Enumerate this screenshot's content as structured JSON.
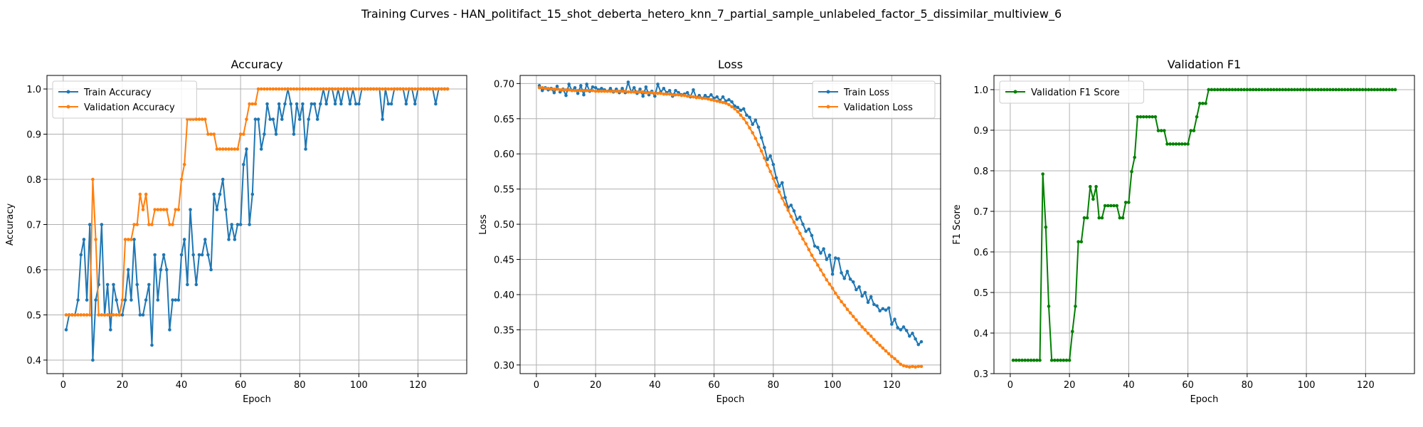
{
  "figure": {
    "suptitle": "Training Curves - HAN_politifact_15_shot_deberta_hetero_knn_7_partial_sample_unlabeled_factor_5_dissimilar_multiview_6"
  },
  "colors": {
    "blue": "#1f77b4",
    "orange": "#ff7f0e",
    "green": "#008000",
    "grid": "#b0b0b0",
    "axis": "#000000"
  },
  "chart_data": [
    {
      "type": "line",
      "title": "Accuracy",
      "xlabel": "Epoch",
      "ylabel": "Accuracy",
      "xlim": [
        -5.5,
        136.5
      ],
      "ylim": [
        0.37,
        1.03
      ],
      "xticks": [
        0,
        20,
        40,
        60,
        80,
        100,
        120
      ],
      "yticks": [
        0.4,
        0.5,
        0.6,
        0.7,
        0.8,
        0.9,
        1.0
      ],
      "grid": true,
      "legend_position": "upper left",
      "series": [
        {
          "name": "Train Accuracy",
          "color": "#1f77b4",
          "x_start": 1,
          "values": [
            0.467,
            0.5,
            0.5,
            0.5,
            0.533,
            0.633,
            0.667,
            0.533,
            0.7,
            0.4,
            0.533,
            0.567,
            0.7,
            0.5,
            0.567,
            0.467,
            0.567,
            0.533,
            0.5,
            0.5,
            0.533,
            0.6,
            0.533,
            0.667,
            0.567,
            0.5,
            0.5,
            0.533,
            0.567,
            0.433,
            0.633,
            0.533,
            0.6,
            0.633,
            0.6,
            0.467,
            0.533,
            0.533,
            0.533,
            0.633,
            0.667,
            0.567,
            0.733,
            0.633,
            0.567,
            0.633,
            0.633,
            0.667,
            0.633,
            0.6,
            0.767,
            0.733,
            0.767,
            0.8,
            0.733,
            0.667,
            0.7,
            0.667,
            0.7,
            0.7,
            0.833,
            0.867,
            0.7,
            0.767,
            0.933,
            0.933,
            0.867,
            0.9,
            0.967,
            0.933,
            0.933,
            0.9,
            0.967,
            0.933,
            0.967,
            1.0,
            0.967,
            0.9,
            0.967,
            0.933,
            0.967,
            0.867,
            0.933,
            0.967,
            0.967,
            0.933,
            0.967,
            1.0,
            0.967,
            1.0,
            1.0,
            0.967,
            1.0,
            0.967,
            1.0,
            1.0,
            0.967,
            1.0,
            0.967,
            0.967,
            1.0,
            1.0,
            1.0,
            1.0,
            1.0,
            1.0,
            1.0,
            0.933,
            1.0,
            0.967,
            0.967,
            1.0,
            1.0,
            1.0,
            1.0,
            0.967,
            1.0,
            1.0,
            0.967,
            1.0,
            1.0,
            1.0,
            1.0,
            1.0,
            1.0,
            0.967,
            1.0,
            1.0,
            1.0,
            1.0
          ]
        },
        {
          "name": "Validation Accuracy",
          "color": "#ff7f0e",
          "x_start": 1,
          "values": [
            0.5,
            0.5,
            0.5,
            0.5,
            0.5,
            0.5,
            0.5,
            0.5,
            0.5,
            0.8,
            0.667,
            0.5,
            0.5,
            0.5,
            0.5,
            0.5,
            0.5,
            0.5,
            0.5,
            0.533,
            0.667,
            0.667,
            0.667,
            0.7,
            0.7,
            0.767,
            0.733,
            0.767,
            0.7,
            0.7,
            0.733,
            0.733,
            0.733,
            0.733,
            0.733,
            0.7,
            0.7,
            0.733,
            0.733,
            0.8,
            0.833,
            0.933,
            0.933,
            0.933,
            0.933,
            0.933,
            0.933,
            0.933,
            0.9,
            0.9,
            0.9,
            0.867,
            0.867,
            0.867,
            0.867,
            0.867,
            0.867,
            0.867,
            0.867,
            0.9,
            0.9,
            0.933,
            0.967,
            0.967,
            0.967,
            1.0,
            1.0,
            1.0,
            1.0,
            1.0,
            1.0,
            1.0,
            1.0,
            1.0,
            1.0,
            1.0,
            1.0,
            1.0,
            1.0,
            1.0,
            1.0,
            1.0,
            1.0,
            1.0,
            1.0,
            1.0,
            1.0,
            1.0,
            1.0,
            1.0,
            1.0,
            1.0,
            1.0,
            1.0,
            1.0,
            1.0,
            1.0,
            1.0,
            1.0,
            1.0,
            1.0,
            1.0,
            1.0,
            1.0,
            1.0,
            1.0,
            1.0,
            1.0,
            1.0,
            1.0,
            1.0,
            1.0,
            1.0,
            1.0,
            1.0,
            1.0,
            1.0,
            1.0,
            1.0,
            1.0,
            1.0,
            1.0,
            1.0,
            1.0,
            1.0,
            1.0,
            1.0,
            1.0,
            1.0,
            1.0
          ]
        }
      ]
    },
    {
      "type": "line",
      "title": "Loss",
      "xlabel": "Epoch",
      "ylabel": "Loss",
      "xlim": [
        -5.5,
        136.5
      ],
      "ylim": [
        0.2877,
        0.7115
      ],
      "xticks": [
        0,
        20,
        40,
        60,
        80,
        100,
        120
      ],
      "yticks": [
        0.3,
        0.35,
        0.4,
        0.45,
        0.5,
        0.55,
        0.6,
        0.65,
        0.7
      ],
      "grid": true,
      "legend_position": "upper right",
      "series": [
        {
          "name": "Train Loss",
          "color": "#1f77b4",
          "x_start": 1,
          "values": [
            0.697,
            0.69,
            0.694,
            0.691,
            0.693,
            0.687,
            0.696,
            0.688,
            0.692,
            0.683,
            0.699,
            0.69,
            0.694,
            0.686,
            0.697,
            0.684,
            0.699,
            0.689,
            0.695,
            0.694,
            0.691,
            0.693,
            0.691,
            0.689,
            0.693,
            0.688,
            0.692,
            0.687,
            0.693,
            0.687,
            0.702,
            0.688,
            0.694,
            0.686,
            0.692,
            0.682,
            0.695,
            0.684,
            0.689,
            0.682,
            0.699,
            0.688,
            0.693,
            0.687,
            0.69,
            0.682,
            0.69,
            0.687,
            0.684,
            0.685,
            0.687,
            0.681,
            0.691,
            0.68,
            0.683,
            0.679,
            0.683,
            0.68,
            0.684,
            0.679,
            0.681,
            0.676,
            0.681,
            0.675,
            0.677,
            0.674,
            0.668,
            0.666,
            0.662,
            0.664,
            0.655,
            0.652,
            0.642,
            0.648,
            0.638,
            0.623,
            0.609,
            0.592,
            0.597,
            0.585,
            0.566,
            0.554,
            0.559,
            0.538,
            0.524,
            0.527,
            0.519,
            0.507,
            0.51,
            0.5,
            0.49,
            0.493,
            0.484,
            0.469,
            0.467,
            0.459,
            0.465,
            0.45,
            0.456,
            0.429,
            0.452,
            0.451,
            0.431,
            0.423,
            0.433,
            0.422,
            0.418,
            0.407,
            0.411,
            0.398,
            0.403,
            0.389,
            0.397,
            0.386,
            0.384,
            0.377,
            0.38,
            0.378,
            0.381,
            0.358,
            0.365,
            0.353,
            0.35,
            0.354,
            0.349,
            0.341,
            0.345,
            0.337,
            0.329,
            0.333
          ]
        },
        {
          "name": "Validation Loss",
          "color": "#ff7f0e",
          "x_start": 1,
          "values": [
            0.694,
            0.694,
            0.693,
            0.693,
            0.692,
            0.692,
            0.692,
            0.691,
            0.691,
            0.691,
            0.691,
            0.69,
            0.69,
            0.69,
            0.69,
            0.69,
            0.69,
            0.69,
            0.69,
            0.689,
            0.689,
            0.689,
            0.689,
            0.689,
            0.689,
            0.689,
            0.689,
            0.689,
            0.689,
            0.689,
            0.688,
            0.688,
            0.688,
            0.688,
            0.688,
            0.688,
            0.687,
            0.687,
            0.687,
            0.686,
            0.686,
            0.686,
            0.685,
            0.685,
            0.685,
            0.684,
            0.684,
            0.684,
            0.683,
            0.683,
            0.682,
            0.682,
            0.681,
            0.68,
            0.68,
            0.679,
            0.679,
            0.678,
            0.677,
            0.676,
            0.675,
            0.674,
            0.673,
            0.672,
            0.67,
            0.667,
            0.664,
            0.66,
            0.655,
            0.65,
            0.644,
            0.637,
            0.63,
            0.622,
            0.613,
            0.604,
            0.594,
            0.584,
            0.575,
            0.565,
            0.555,
            0.546,
            0.537,
            0.528,
            0.52,
            0.511,
            0.503,
            0.495,
            0.487,
            0.479,
            0.472,
            0.464,
            0.456,
            0.449,
            0.442,
            0.435,
            0.428,
            0.421,
            0.415,
            0.409,
            0.402,
            0.396,
            0.39,
            0.385,
            0.379,
            0.374,
            0.369,
            0.364,
            0.359,
            0.354,
            0.35,
            0.345,
            0.341,
            0.336,
            0.332,
            0.328,
            0.324,
            0.32,
            0.316,
            0.312,
            0.309,
            0.305,
            0.301,
            0.299,
            0.298,
            0.297,
            0.298,
            0.297,
            0.298,
            0.298
          ]
        }
      ]
    },
    {
      "type": "line",
      "title": "Validation F1",
      "xlabel": "Epoch",
      "ylabel": "F1 Score",
      "xlim": [
        -5.5,
        136.5
      ],
      "ylim": [
        0.3,
        1.035
      ],
      "xticks": [
        0,
        20,
        40,
        60,
        80,
        100,
        120
      ],
      "yticks": [
        0.3,
        0.4,
        0.5,
        0.6,
        0.7,
        0.8,
        0.9,
        1.0
      ],
      "grid": true,
      "legend_position": "upper left",
      "series": [
        {
          "name": "Validation F1 Score",
          "color": "#008000",
          "x_start": 1,
          "values": [
            0.333,
            0.333,
            0.333,
            0.333,
            0.333,
            0.333,
            0.333,
            0.333,
            0.333,
            0.333,
            0.792,
            0.661,
            0.466,
            0.333,
            0.333,
            0.333,
            0.333,
            0.333,
            0.333,
            0.333,
            0.404,
            0.466,
            0.625,
            0.625,
            0.684,
            0.684,
            0.761,
            0.73,
            0.761,
            0.684,
            0.684,
            0.714,
            0.714,
            0.714,
            0.714,
            0.714,
            0.684,
            0.684,
            0.722,
            0.722,
            0.798,
            0.833,
            0.933,
            0.933,
            0.933,
            0.933,
            0.933,
            0.933,
            0.933,
            0.899,
            0.899,
            0.899,
            0.866,
            0.866,
            0.866,
            0.866,
            0.866,
            0.866,
            0.866,
            0.866,
            0.899,
            0.899,
            0.933,
            0.966,
            0.966,
            0.966,
            1.0,
            1.0,
            1.0,
            1.0,
            1.0,
            1.0,
            1.0,
            1.0,
            1.0,
            1.0,
            1.0,
            1.0,
            1.0,
            1.0,
            1.0,
            1.0,
            1.0,
            1.0,
            1.0,
            1.0,
            1.0,
            1.0,
            1.0,
            1.0,
            1.0,
            1.0,
            1.0,
            1.0,
            1.0,
            1.0,
            1.0,
            1.0,
            1.0,
            1.0,
            1.0,
            1.0,
            1.0,
            1.0,
            1.0,
            1.0,
            1.0,
            1.0,
            1.0,
            1.0,
            1.0,
            1.0,
            1.0,
            1.0,
            1.0,
            1.0,
            1.0,
            1.0,
            1.0,
            1.0,
            1.0,
            1.0,
            1.0,
            1.0,
            1.0,
            1.0,
            1.0,
            1.0,
            1.0,
            1.0
          ]
        }
      ]
    }
  ]
}
